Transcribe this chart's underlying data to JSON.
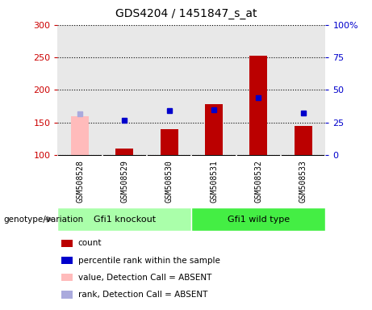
{
  "title": "GDS4204 / 1451847_s_at",
  "samples": [
    "GSM508528",
    "GSM508529",
    "GSM508530",
    "GSM508531",
    "GSM508532",
    "GSM508533"
  ],
  "count_values": [
    null,
    110,
    140,
    178,
    252,
    145
  ],
  "count_absent_values": [
    160,
    null,
    null,
    null,
    null,
    null
  ],
  "rank_values": [
    null,
    153,
    168,
    170,
    188,
    164
  ],
  "rank_absent_values": [
    163,
    null,
    null,
    null,
    null,
    null
  ],
  "ylim_left": [
    100,
    300
  ],
  "ylim_right": [
    0,
    100
  ],
  "left_ticks": [
    100,
    150,
    200,
    250,
    300
  ],
  "right_ticks": [
    0,
    25,
    50,
    75,
    100
  ],
  "left_tick_labels": [
    "100",
    "150",
    "200",
    "250",
    "300"
  ],
  "right_tick_labels": [
    "0",
    "25",
    "50",
    "75",
    "100%"
  ],
  "left_axis_color": "#cc0000",
  "right_axis_color": "#0000cc",
  "bar_color": "#bb0000",
  "bar_absent_color": "#ffbbbb",
  "marker_color": "#0000cc",
  "marker_absent_color": "#aaaadd",
  "bar_width": 0.4,
  "groups": [
    {
      "label": "Gfi1 knockout",
      "samples_idx": [
        0,
        1,
        2
      ],
      "color": "#aaffaa"
    },
    {
      "label": "Gfi1 wild type",
      "samples_idx": [
        3,
        4,
        5
      ],
      "color": "#44ee44"
    }
  ],
  "genotype_label": "genotype/variation",
  "legend": [
    {
      "label": "count",
      "color": "#bb0000"
    },
    {
      "label": "percentile rank within the sample",
      "color": "#0000cc"
    },
    {
      "label": "value, Detection Call = ABSENT",
      "color": "#ffbbbb"
    },
    {
      "label": "rank, Detection Call = ABSENT",
      "color": "#aaaadd"
    }
  ],
  "plot_bg_color": "#e8e8e8",
  "sample_area_color": "#cccccc",
  "grid_color": "#000000",
  "fig_bg_color": "#ffffff",
  "spine_color": "#888888"
}
